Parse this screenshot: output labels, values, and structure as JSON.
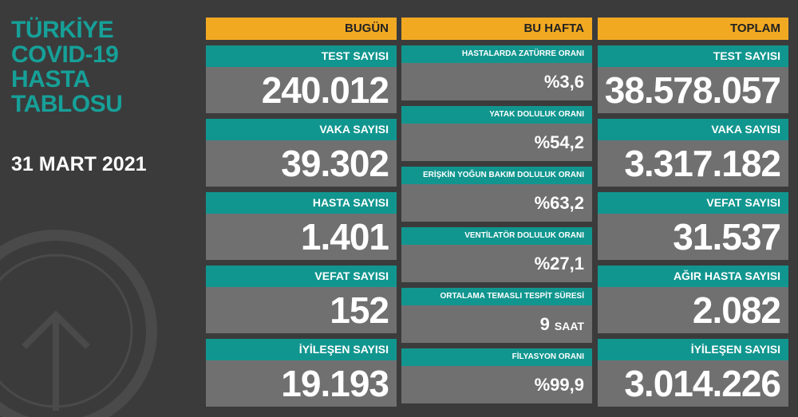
{
  "sidebar": {
    "title_lines": [
      "TÜRKİYE",
      "COVID-19",
      "HASTA",
      "TABLOSU"
    ],
    "date": "31 MART 2021"
  },
  "columns": [
    {
      "header": "BUGÜN",
      "cards": [
        {
          "label": "TEST SAYISI",
          "value": "240.012"
        },
        {
          "label": "VAKA SAYISI",
          "value": "39.302"
        },
        {
          "label": "HASTA SAYISI",
          "value": "1.401"
        },
        {
          "label": "VEFAT SAYISI",
          "value": "152"
        },
        {
          "label": "İYİLEŞEN SAYISI",
          "value": "19.193"
        }
      ]
    },
    {
      "header": "BU HAFTA",
      "cards": [
        {
          "label": "HASTALARDA ZATÜRRE ORANI",
          "value": "%3,6"
        },
        {
          "label": "YATAK DOLULUK ORANI",
          "value": "%54,2"
        },
        {
          "label": "ERİŞKİN YOĞUN BAKIM DOLULUK ORANI",
          "value": "%63,2"
        },
        {
          "label": "VENTİLATÖR DOLULUK ORANI",
          "value": "%27,1"
        },
        {
          "label": "ORTALAMA TEMASLI TESPİT SÜRESİ",
          "value": "9",
          "unit": "SAAT"
        },
        {
          "label": "FİLYASYON ORANI",
          "value": "%99,9"
        }
      ]
    },
    {
      "header": "TOPLAM",
      "cards": [
        {
          "label": "TEST SAYISI",
          "value": "38.578.057"
        },
        {
          "label": "VAKA SAYISI",
          "value": "3.317.182"
        },
        {
          "label": "VEFAT SAYISI",
          "value": "31.537"
        },
        {
          "label": "AĞIR HASTA SAYISI",
          "value": "2.082"
        },
        {
          "label": "İYİLEŞEN SAYISI",
          "value": "3.014.226"
        }
      ]
    }
  ]
}
